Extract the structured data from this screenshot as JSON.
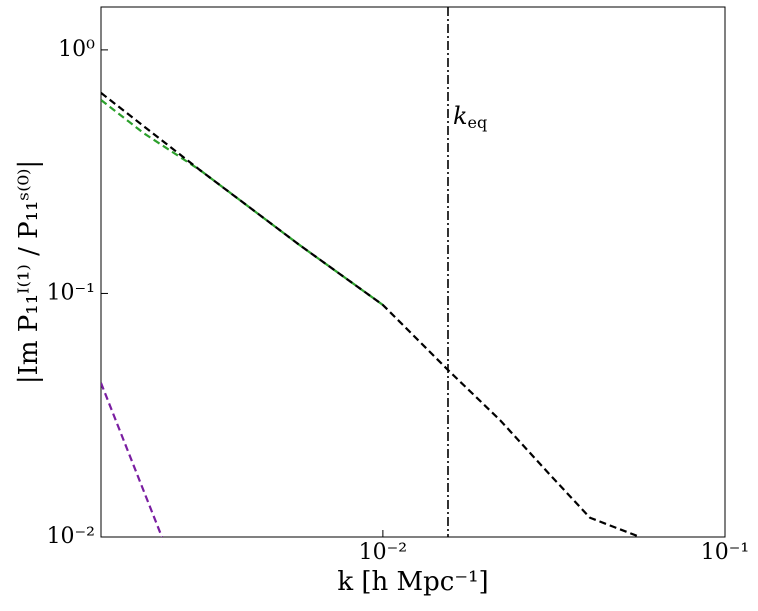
{
  "chart_data": {
    "type": "line",
    "xlabel": "k [h Mpc⁻¹]",
    "ylabel": "|Im P₁₁ᴵ⁽¹⁾ / P₁₁ˢ⁽⁰⁾|",
    "xscale": "log",
    "yscale": "log",
    "xlim": [
      0.0015,
      0.1
    ],
    "ylim": [
      0.01,
      1.5
    ],
    "xticks": [
      {
        "value": 0.01,
        "label": "10⁻²"
      },
      {
        "value": 0.1,
        "label": "10⁻¹"
      }
    ],
    "yticks": [
      {
        "value": 0.01,
        "label": "10⁻²"
      },
      {
        "value": 0.1,
        "label": "10⁻¹"
      },
      {
        "value": 1,
        "label": "10⁰"
      }
    ],
    "vline": {
      "x": 0.0155,
      "text": "k",
      "subscript": "eq",
      "color": "#000000"
    },
    "series": [
      {
        "color": "#2ca02c",
        "dash": "7,4",
        "x": [
          0.0015,
          0.002,
          0.00292,
          0.00571,
          0.01
        ],
        "values": [
          0.623,
          0.455,
          0.321,
          0.158,
          0.0897
        ]
      },
      {
        "color": "#7a1ea1",
        "dash": "7,4",
        "x": [
          0.0015,
          0.00226
        ],
        "values": [
          0.0429,
          0.01
        ]
      },
      {
        "color": "#000000",
        "dash": "7,4",
        "x": [
          0.0015,
          0.00292,
          0.00571,
          0.01,
          0.0155,
          0.022,
          0.0308,
          0.0403,
          0.0564
        ],
        "values": [
          0.666,
          0.321,
          0.158,
          0.0897,
          0.0485,
          0.0302,
          0.018,
          0.012,
          0.01
        ]
      }
    ]
  }
}
